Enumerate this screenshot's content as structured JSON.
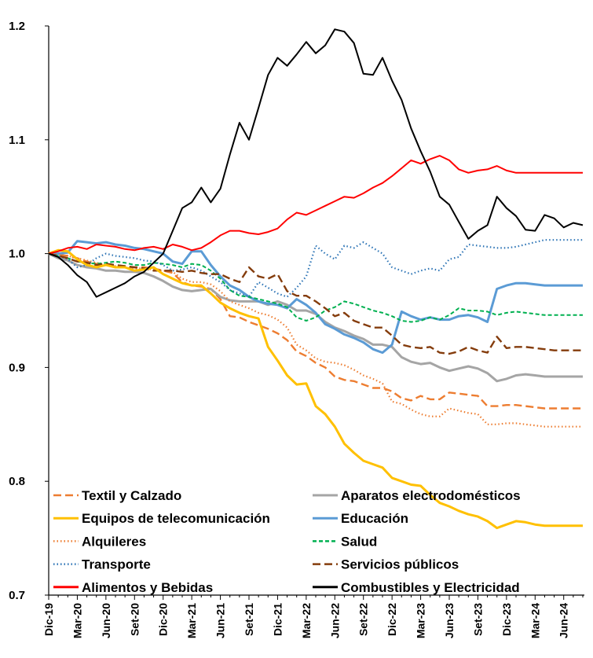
{
  "chart_data": {
    "type": "line",
    "title": "",
    "xlabel": "",
    "ylabel": "",
    "ylim": [
      0.7,
      1.2
    ],
    "yticks": [
      "0.7",
      "0.8",
      "0.9",
      "1.0",
      "1.1",
      "1.2"
    ],
    "grid": false,
    "legend_position": "bottom-left, two columns",
    "x_tick_labels": [
      "Dic-19",
      "Mar-20",
      "Jun-20",
      "Set-20",
      "Dic-20",
      "Mar-21",
      "Jun-21",
      "Set-21",
      "Dic-21",
      "Mar-22",
      "Jun-22",
      "Set-22",
      "Dic-22",
      "Mar-23",
      "Jun-23",
      "Set-23",
      "Dic-23",
      "Mar-24",
      "Jun-24"
    ],
    "x_tick_every": 3,
    "n_points": 57,
    "series": [
      {
        "name": "Textil y Calzado",
        "color": "#ED7D31",
        "dash": "long-dash",
        "values": [
          1.0,
          0.999,
          0.998,
          0.996,
          0.993,
          0.991,
          0.99,
          0.989,
          0.988,
          0.988,
          0.988,
          0.987,
          0.985,
          0.983,
          0.975,
          0.972,
          0.971,
          0.969,
          0.96,
          0.945,
          0.944,
          0.94,
          0.937,
          0.934,
          0.93,
          0.924,
          0.914,
          0.91,
          0.904,
          0.9,
          0.892,
          0.889,
          0.888,
          0.885,
          0.882,
          0.882,
          0.879,
          0.873,
          0.871,
          0.875,
          0.872,
          0.872,
          0.878,
          0.877,
          0.876,
          0.875,
          0.866,
          0.866,
          0.867,
          0.867,
          0.866,
          0.865,
          0.864,
          0.864,
          0.864,
          0.864,
          0.864
        ]
      },
      {
        "name": "Aparatos electrodomésticos",
        "color": "#A5A5A5",
        "dash": "solid",
        "values": [
          1.0,
          0.996,
          0.994,
          0.99,
          0.988,
          0.987,
          0.985,
          0.985,
          0.984,
          0.984,
          0.983,
          0.98,
          0.976,
          0.971,
          0.968,
          0.967,
          0.968,
          0.969,
          0.962,
          0.959,
          0.958,
          0.958,
          0.958,
          0.955,
          0.958,
          0.955,
          0.95,
          0.95,
          0.947,
          0.94,
          0.935,
          0.932,
          0.928,
          0.925,
          0.92,
          0.92,
          0.918,
          0.909,
          0.905,
          0.903,
          0.904,
          0.9,
          0.897,
          0.899,
          0.901,
          0.899,
          0.895,
          0.888,
          0.89,
          0.893,
          0.894,
          0.893,
          0.892,
          0.892,
          0.892,
          0.892,
          0.892
        ]
      },
      {
        "name": "Equipos de telecomunicación",
        "color": "#FFC000",
        "dash": "solid",
        "values": [
          1.0,
          1.003,
          1.002,
          0.995,
          0.99,
          0.988,
          0.99,
          0.988,
          0.988,
          0.985,
          0.986,
          0.988,
          0.982,
          0.978,
          0.974,
          0.972,
          0.972,
          0.965,
          0.957,
          0.952,
          0.948,
          0.945,
          0.943,
          0.918,
          0.906,
          0.893,
          0.885,
          0.886,
          0.866,
          0.859,
          0.848,
          0.833,
          0.825,
          0.818,
          0.815,
          0.812,
          0.803,
          0.8,
          0.797,
          0.796,
          0.788,
          0.781,
          0.778,
          0.774,
          0.771,
          0.769,
          0.765,
          0.759,
          0.762,
          0.765,
          0.764,
          0.762,
          0.761,
          0.761,
          0.761,
          0.761,
          0.761
        ]
      },
      {
        "name": "Educación",
        "color": "#5B9BD5",
        "dash": "solid",
        "values": [
          1.0,
          1.0,
          1.001,
          1.011,
          1.01,
          1.009,
          1.01,
          1.008,
          1.007,
          1.005,
          1.004,
          1.002,
          1.0,
          0.993,
          0.991,
          1.002,
          1.002,
          0.99,
          0.98,
          0.972,
          0.968,
          0.962,
          0.958,
          0.956,
          0.955,
          0.952,
          0.96,
          0.955,
          0.948,
          0.938,
          0.934,
          0.929,
          0.926,
          0.922,
          0.916,
          0.913,
          0.92,
          0.949,
          0.945,
          0.942,
          0.944,
          0.942,
          0.942,
          0.945,
          0.946,
          0.944,
          0.94,
          0.969,
          0.972,
          0.974,
          0.974,
          0.973,
          0.972,
          0.972,
          0.972,
          0.972,
          0.972
        ]
      },
      {
        "name": "Alquileres",
        "color": "#ED7D31",
        "dash": "dotted",
        "values": [
          1.0,
          0.999,
          0.998,
          0.996,
          0.994,
          0.992,
          0.99,
          0.989,
          0.988,
          0.987,
          0.987,
          0.986,
          0.985,
          0.984,
          0.978,
          0.975,
          0.975,
          0.973,
          0.967,
          0.958,
          0.955,
          0.952,
          0.948,
          0.946,
          0.942,
          0.935,
          0.92,
          0.915,
          0.908,
          0.905,
          0.904,
          0.902,
          0.898,
          0.893,
          0.89,
          0.886,
          0.87,
          0.868,
          0.863,
          0.859,
          0.857,
          0.857,
          0.864,
          0.862,
          0.86,
          0.859,
          0.85,
          0.85,
          0.851,
          0.851,
          0.85,
          0.849,
          0.848,
          0.848,
          0.848,
          0.848,
          0.848
        ]
      },
      {
        "name": "Salud",
        "color": "#00B050",
        "dash": "short-dash",
        "values": [
          1.0,
          0.998,
          0.996,
          0.993,
          0.992,
          0.991,
          0.992,
          0.993,
          0.992,
          0.99,
          0.99,
          0.992,
          0.991,
          0.99,
          0.988,
          0.991,
          0.99,
          0.985,
          0.978,
          0.968,
          0.963,
          0.962,
          0.96,
          0.958,
          0.956,
          0.953,
          0.944,
          0.941,
          0.944,
          0.95,
          0.953,
          0.958,
          0.956,
          0.953,
          0.95,
          0.948,
          0.945,
          0.941,
          0.94,
          0.941,
          0.944,
          0.942,
          0.946,
          0.952,
          0.95,
          0.95,
          0.949,
          0.946,
          0.948,
          0.949,
          0.948,
          0.947,
          0.946,
          0.946,
          0.946,
          0.946,
          0.946
        ]
      },
      {
        "name": "Transporte",
        "color": "#2E75B6",
        "dash": "dotted",
        "values": [
          1.0,
          0.998,
          0.995,
          0.988,
          0.99,
          0.996,
          1.0,
          0.998,
          0.997,
          0.996,
          0.994,
          0.993,
          0.99,
          0.985,
          0.986,
          0.988,
          0.985,
          0.98,
          0.975,
          0.968,
          0.965,
          0.962,
          0.975,
          0.97,
          0.965,
          0.962,
          0.97,
          0.98,
          1.007,
          1.0,
          0.995,
          1.007,
          1.005,
          1.01,
          1.005,
          1.0,
          0.988,
          0.985,
          0.982,
          0.985,
          0.987,
          0.985,
          0.995,
          0.997,
          1.008,
          1.007,
          1.006,
          1.005,
          1.005,
          1.006,
          1.008,
          1.01,
          1.012,
          1.012,
          1.012,
          1.012,
          1.012
        ]
      },
      {
        "name": "Servicios públicos",
        "color": "#843C0C",
        "dash": "long-dash",
        "values": [
          1.0,
          0.998,
          0.996,
          0.993,
          0.992,
          0.99,
          0.991,
          0.99,
          0.989,
          0.988,
          0.987,
          0.985,
          0.985,
          0.985,
          0.984,
          0.985,
          0.983,
          0.982,
          0.982,
          0.978,
          0.975,
          0.988,
          0.98,
          0.978,
          0.982,
          0.967,
          0.963,
          0.963,
          0.958,
          0.952,
          0.945,
          0.948,
          0.941,
          0.938,
          0.935,
          0.935,
          0.928,
          0.92,
          0.918,
          0.917,
          0.918,
          0.913,
          0.912,
          0.914,
          0.918,
          0.915,
          0.913,
          0.927,
          0.917,
          0.918,
          0.918,
          0.917,
          0.916,
          0.915,
          0.915,
          0.915,
          0.915
        ]
      },
      {
        "name": "Alimentos y Bebidas",
        "color": "#FF0000",
        "dash": "solid",
        "values": [
          1.0,
          1.002,
          1.005,
          1.006,
          1.004,
          1.008,
          1.007,
          1.006,
          1.004,
          1.003,
          1.005,
          1.006,
          1.004,
          1.008,
          1.006,
          1.003,
          1.005,
          1.01,
          1.016,
          1.02,
          1.02,
          1.018,
          1.017,
          1.019,
          1.022,
          1.03,
          1.036,
          1.034,
          1.038,
          1.042,
          1.046,
          1.05,
          1.049,
          1.053,
          1.058,
          1.062,
          1.068,
          1.075,
          1.082,
          1.079,
          1.083,
          1.086,
          1.082,
          1.074,
          1.071,
          1.073,
          1.074,
          1.077,
          1.073,
          1.071,
          1.071,
          1.071,
          1.071,
          1.071,
          1.071,
          1.071,
          1.071
        ]
      },
      {
        "name": "Combustibles y Electricidad",
        "color": "#000000",
        "dash": "solid",
        "values": [
          1.0,
          0.997,
          0.99,
          0.981,
          0.975,
          0.962,
          0.966,
          0.97,
          0.974,
          0.98,
          0.984,
          0.992,
          1.0,
          1.02,
          1.04,
          1.045,
          1.058,
          1.045,
          1.057,
          1.087,
          1.115,
          1.1,
          1.128,
          1.157,
          1.172,
          1.165,
          1.175,
          1.186,
          1.176,
          1.183,
          1.197,
          1.195,
          1.185,
          1.158,
          1.157,
          1.172,
          1.152,
          1.135,
          1.11,
          1.09,
          1.072,
          1.05,
          1.043,
          1.028,
          1.013,
          1.02,
          1.025,
          1.05,
          1.04,
          1.033,
          1.021,
          1.02,
          1.034,
          1.031,
          1.023,
          1.027,
          1.025
        ]
      }
    ]
  }
}
